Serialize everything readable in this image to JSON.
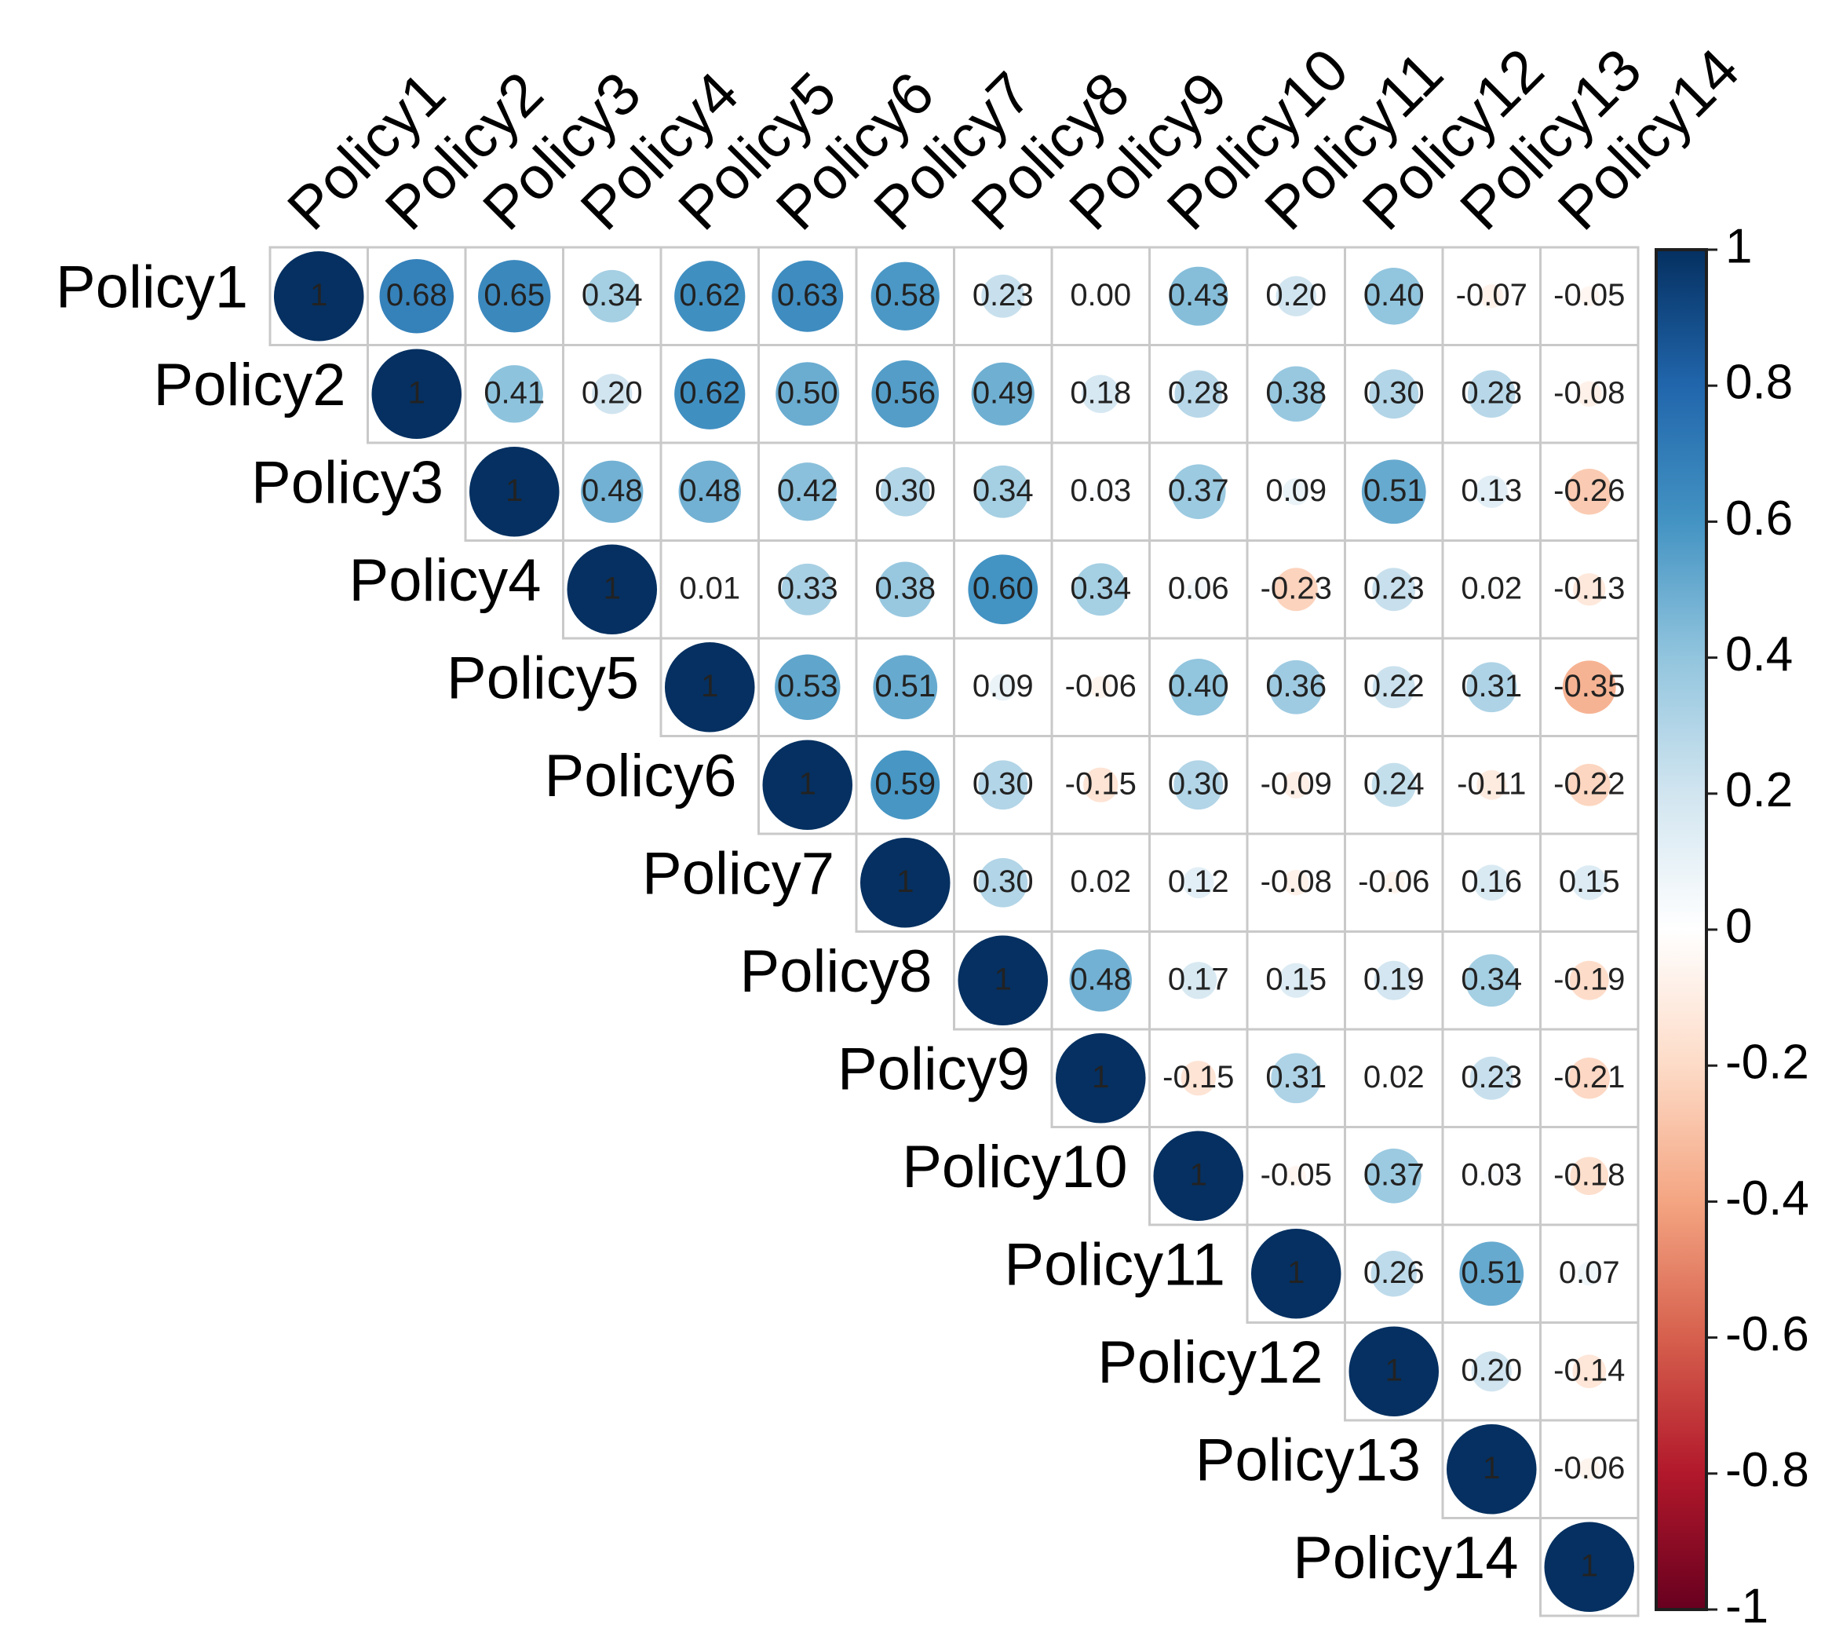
{
  "chart_data": {
    "type": "heatmap",
    "style": "correlation upper triangle with circles",
    "variables": [
      "Policy1",
      "Policy2",
      "Policy3",
      "Policy4",
      "Policy5",
      "Policy6",
      "Policy7",
      "Policy8",
      "Policy9",
      "Policy10",
      "Policy11",
      "Policy12",
      "Policy13",
      "Policy14"
    ],
    "rows": [
      [
        "1",
        "0.68",
        "0.65",
        "0.34",
        "0.62",
        "0.63",
        "0.58",
        "0.23",
        "0.00",
        "0.43",
        "0.20",
        "0.40",
        "-0.07",
        "-0.05"
      ],
      [
        "1",
        "0.41",
        "0.20",
        "0.62",
        "0.50",
        "0.56",
        "0.49",
        "0.18",
        "0.28",
        "0.38",
        "0.30",
        "0.28",
        "-0.08"
      ],
      [
        "1",
        "0.48",
        "0.48",
        "0.42",
        "0.30",
        "0.34",
        "0.03",
        "0.37",
        "0.09",
        "0.51",
        "0.13",
        "-0.26"
      ],
      [
        "1",
        "0.01",
        "0.33",
        "0.38",
        "0.60",
        "0.34",
        "0.06",
        "-0.23",
        "0.23",
        "0.02",
        "-0.13"
      ],
      [
        "1",
        "0.53",
        "0.51",
        "0.09",
        "-0.06",
        "0.40",
        "0.36",
        "0.22",
        "0.31",
        "-0.35"
      ],
      [
        "1",
        "0.59",
        "0.30",
        "-0.15",
        "0.30",
        "-0.09",
        "0.24",
        "-0.11",
        "-0.22"
      ],
      [
        "1",
        "0.30",
        "0.02",
        "0.12",
        "-0.08",
        "-0.06",
        "0.16",
        "0.15"
      ],
      [
        "1",
        "0.48",
        "0.17",
        "0.15",
        "0.19",
        "0.34",
        "-0.19"
      ],
      [
        "1",
        "-0.15",
        "0.31",
        "0.02",
        "0.23",
        "-0.21"
      ],
      [
        "1",
        "-0.05",
        "0.37",
        "0.03",
        "-0.18"
      ],
      [
        "1",
        "0.26",
        "0.51",
        "0.07"
      ],
      [
        "1",
        "0.20",
        "-0.14"
      ],
      [
        "1",
        "-0.06"
      ],
      [
        "1"
      ]
    ],
    "color_scale": {
      "min": -1,
      "max": 1,
      "ticks": [
        "1",
        "0.8",
        "0.6",
        "0.4",
        "0.2",
        "0",
        "-0.2",
        "-0.4",
        "-0.6",
        "-0.8",
        "-1"
      ],
      "stops": [
        {
          "value": -1,
          "color": "#67001f"
        },
        {
          "value": -0.8,
          "color": "#b2182b"
        },
        {
          "value": -0.6,
          "color": "#d6604d"
        },
        {
          "value": -0.4,
          "color": "#f4a582"
        },
        {
          "value": -0.2,
          "color": "#fddbc7"
        },
        {
          "value": 0,
          "color": "#ffffff"
        },
        {
          "value": 0.2,
          "color": "#d1e5f0"
        },
        {
          "value": 0.4,
          "color": "#92c5de"
        },
        {
          "value": 0.6,
          "color": "#4393c3"
        },
        {
          "value": 0.8,
          "color": "#2166ac"
        },
        {
          "value": 1,
          "color": "#053061"
        }
      ]
    },
    "title": "",
    "legend_position": "right"
  }
}
